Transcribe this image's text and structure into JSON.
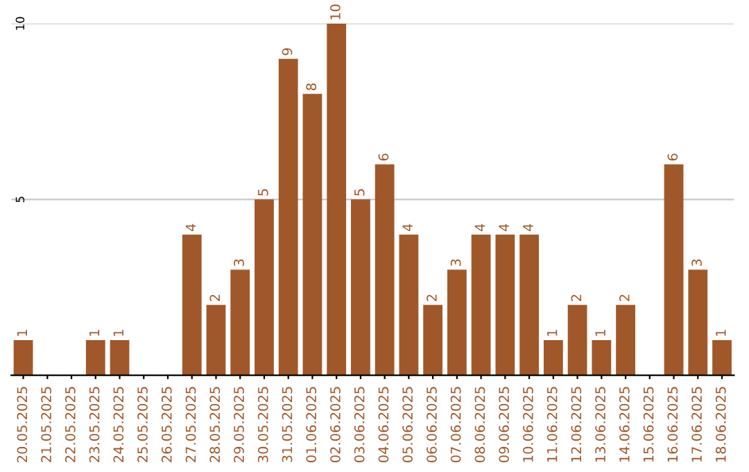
{
  "chart_data": {
    "type": "bar",
    "categories": [
      "20.05.2025",
      "21.05.2025",
      "22.05.2025",
      "23.05.2025",
      "24.05.2025",
      "25.05.2025",
      "26.05.2025",
      "27.05.2025",
      "28.05.2025",
      "29.05.2025",
      "30.05.2025",
      "31.05.2025",
      "01.06.2025",
      "02.06.2025",
      "03.06.2025",
      "04.06.2025",
      "05.06.2025",
      "06.06.2025",
      "07.06.2025",
      "08.06.2025",
      "09.06.2025",
      "10.06.2025",
      "11.06.2025",
      "12.06.2025",
      "13.06.2025",
      "14.06.2025",
      "15.06.2025",
      "16.06.2025",
      "17.06.2025",
      "18.06.2025"
    ],
    "values": [
      1,
      0,
      0,
      1,
      1,
      0,
      0,
      4,
      2,
      3,
      5,
      9,
      8,
      10,
      5,
      6,
      4,
      2,
      3,
      4,
      4,
      4,
      1,
      2,
      1,
      2,
      0,
      6,
      3,
      1
    ],
    "value_labels": [
      "1",
      null,
      null,
      "1",
      "1",
      null,
      null,
      "4",
      "2",
      "3",
      "5",
      "9",
      "8",
      "10",
      "5",
      "6",
      "4",
      "2",
      "3",
      "4",
      "4",
      "4",
      "1",
      "2",
      "1",
      "2",
      null,
      "6",
      "3",
      "1"
    ],
    "color": "#a0582a",
    "ylim": [
      0,
      10
    ],
    "yticks": [
      5,
      10
    ],
    "grid": "y"
  }
}
